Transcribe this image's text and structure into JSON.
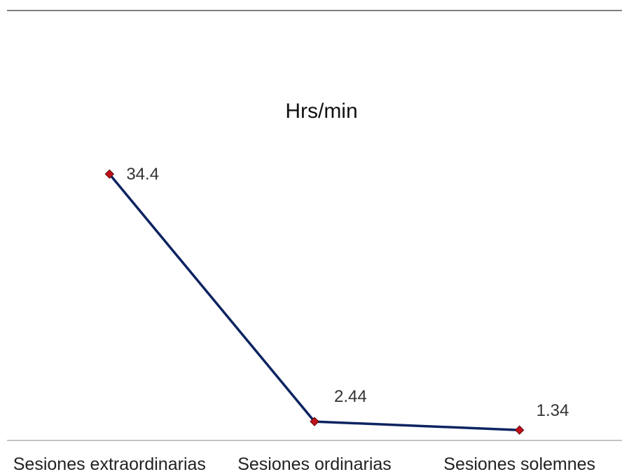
{
  "chart_data": {
    "type": "line",
    "title": "Hrs/min",
    "categories": [
      "Sesiones extraordinarias",
      "Sesiones ordinarias",
      "Sesiones solemnes"
    ],
    "series": [
      {
        "values": [
          34.4,
          2.44,
          1.34
        ],
        "labels": [
          "34.4",
          "2.44",
          "1.34"
        ]
      }
    ],
    "xlabel": "",
    "ylabel": "",
    "ylim": [
      0,
      36.5
    ],
    "grid": false,
    "line_color": "#0d2461",
    "marker_color": "#c0111a",
    "marker_shape": "diamond"
  }
}
